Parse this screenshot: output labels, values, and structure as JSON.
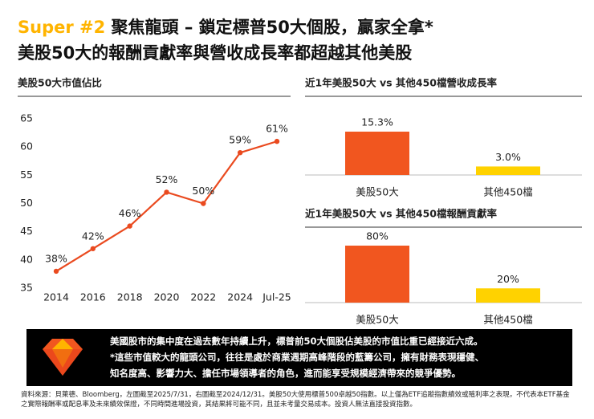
{
  "header": {
    "badge": "Super #2",
    "title": "聚焦龍頭 – 鎖定標普50大個股，贏家全拿*",
    "subtitle": "美股50大的報酬貢獻率與營收成長率都超越其他美股"
  },
  "chart_data": [
    {
      "type": "line",
      "title": "美股50大市值佔比",
      "categories": [
        "2014",
        "2016",
        "2018",
        "2020",
        "2022",
        "2024",
        "Jul-25"
      ],
      "values": [
        38,
        42,
        46,
        52,
        50,
        59,
        61
      ],
      "value_labels": [
        "38%",
        "42%",
        "46%",
        "52%",
        "50%",
        "59%",
        "61%"
      ],
      "color": "#ea4a1f",
      "ylim": [
        35,
        65
      ],
      "yticks": [
        35,
        40,
        45,
        50,
        55,
        60,
        65
      ]
    },
    {
      "type": "bar",
      "title": "近1年美股50大 vs 其他450檔營收成長率",
      "categories": [
        "美股50大",
        "其他450檔"
      ],
      "values": [
        15.3,
        3.0
      ],
      "value_labels": [
        "15.3%",
        "3.0%"
      ],
      "colors": [
        "#f1561f",
        "#ffd200"
      ]
    },
    {
      "type": "bar",
      "title": "近1年美股50大 vs 其他450檔報酬貢獻率",
      "categories": [
        "美股50大",
        "其他450檔"
      ],
      "values": [
        80,
        20
      ],
      "value_labels": [
        "80%",
        "20%"
      ],
      "colors": [
        "#f1561f",
        "#ffd200"
      ]
    }
  ],
  "callout": {
    "lines": [
      "美國股市的集中度在過去數年持續上升，標普前50大個股佔美股的市值比重已經接近六成。",
      "*這些市值較大的龍頭公司，往往是處於商業週期高峰階段的藍籌公司，擁有財務表現穩健、",
      "知名度高、影響力大、擔任市場領導者的角色，進而能享受規模經濟帶來的競爭優勢。"
    ]
  },
  "footnote": "資料來源：貝萊德、Bloomberg，左圖截至2025/7/31，右圖截至2024/12/31。美股50大使用標普500卓越50指數。以上僅為ETF追蹤指數績效或殖利率之表現，不代表本ETF基金之實際報酬率或配息率及未來績效保證，不同時間進場投資，其結果將可能不同，且並未考量交易成本。投資人無法直接投資指數。"
}
